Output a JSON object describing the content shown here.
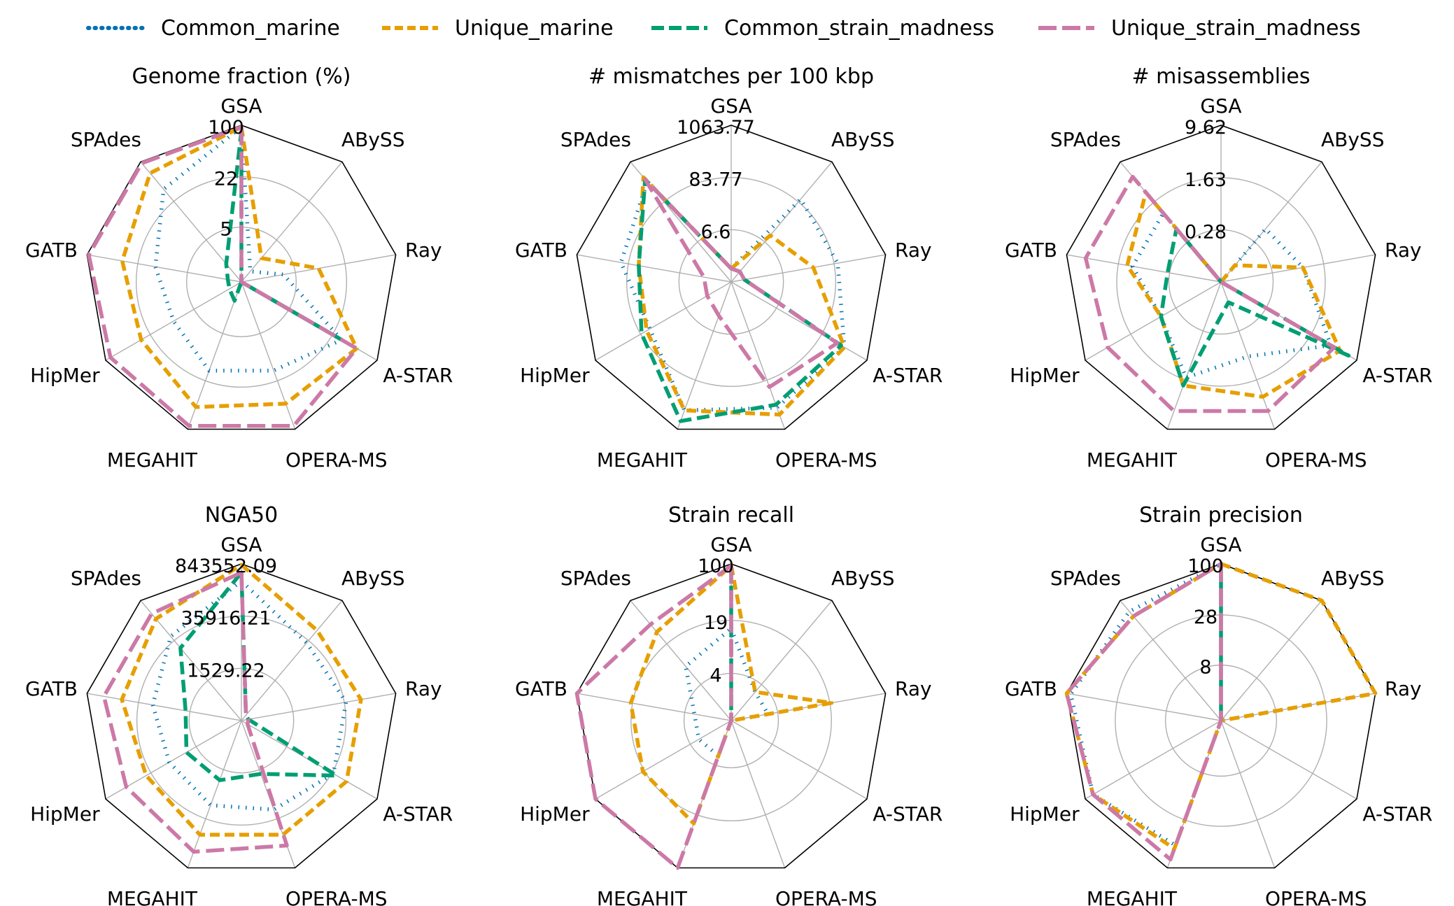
{
  "axes_order": [
    "GSA",
    "ABySS",
    "Ray",
    "A-STAR",
    "OPERA-MS",
    "MEGAHIT",
    "HipMer",
    "GATB",
    "SPAdes"
  ],
  "legend": [
    {
      "name": "Common_marine",
      "color": "#0072b2",
      "style": "dotted"
    },
    {
      "name": "Unique_marine",
      "color": "#e69f00",
      "style": "dashed"
    },
    {
      "name": "Common_strain_madness",
      "color": "#009e73",
      "style": "dashed"
    },
    {
      "name": "Unique_strain_madness",
      "color": "#cc79a7",
      "style": "long-dashed"
    }
  ],
  "chart_data": [
    {
      "type": "radar",
      "title": "Genome fraction (%)",
      "scale": "log",
      "categories": [
        "GSA",
        "ABySS",
        "Ray",
        "A-STAR",
        "OPERA-MS",
        "MEGAHIT",
        "HipMer",
        "GATB",
        "SPAdes"
      ],
      "ring_labels": [
        "5",
        "22",
        "100"
      ],
      "ring_values": [
        5,
        22,
        100
      ],
      "rlim": [
        1,
        100
      ],
      "series": [
        {
          "name": "Common_marine",
          "values": [
            95,
            1.5,
            3.5,
            30,
            16,
            16,
            10,
            13,
            35
          ]
        },
        {
          "name": "Unique_marine",
          "values": [
            95,
            2.5,
            10,
            50,
            45,
            50,
            30,
            35,
            65
          ]
        },
        {
          "name": "Common_strain_madness",
          "values": [
            85,
            1,
            1,
            30,
            1,
            1.8,
            1.5,
            1.5,
            2
          ]
        },
        {
          "name": "Unique_strain_madness",
          "values": [
            95,
            1,
            1,
            50,
            90,
            90,
            85,
            95,
            95
          ]
        }
      ]
    },
    {
      "type": "radar",
      "title": "# mismatches per 100 kbp",
      "scale": "log",
      "categories": [
        "GSA",
        "ABySS",
        "Ray",
        "A-STAR",
        "OPERA-MS",
        "MEGAHIT",
        "HipMer",
        "GATB",
        "SPAdes"
      ],
      "ring_labels": [
        "6.6",
        "83.77",
        "1063.77"
      ],
      "ring_values": [
        6.6,
        83.77,
        1063.77
      ],
      "rlim": [
        0.52,
        1063.77
      ],
      "series": [
        {
          "name": "Common_marine",
          "values": [
            1,
            100,
            100,
            300,
            350,
            400,
            50,
            120,
            300
          ]
        },
        {
          "name": "Unique_marine",
          "values": [
            1,
            10,
            30,
            300,
            500,
            400,
            60,
            50,
            400
          ]
        },
        {
          "name": "Common_strain_madness",
          "values": [
            1,
            1,
            1,
            250,
            300,
            700,
            80,
            50,
            350
          ]
        },
        {
          "name": "Unique_strain_madness",
          "values": [
            1,
            1,
            1,
            200,
            120,
            3,
            2,
            2,
            350
          ]
        }
      ]
    },
    {
      "type": "radar",
      "title": "# misassemblies",
      "scale": "log",
      "categories": [
        "GSA",
        "ABySS",
        "Ray",
        "A-STAR",
        "OPERA-MS",
        "MEGAHIT",
        "HipMer",
        "GATB",
        "SPAdes"
      ],
      "ring_labels": [
        "0.28",
        "1.63",
        "9.62"
      ],
      "ring_values": [
        0.28,
        1.63,
        9.62
      ],
      "rlim": [
        0.048,
        9.62
      ],
      "series": [
        {
          "name": "Common_marine",
          "values": [
            0.048,
            0.5,
            0.8,
            3.5,
            0.7,
            1.5,
            0.5,
            1.0,
            1.0
          ]
        },
        {
          "name": "Unique_marine",
          "values": [
            0.048,
            0.1,
            0.8,
            5,
            3,
            2,
            0.5,
            1.2,
            2.5
          ]
        },
        {
          "name": "Common_strain_madness",
          "values": [
            0.048,
            0.048,
            0.048,
            7,
            0.1,
            2,
            0.5,
            0.3,
            0.5
          ]
        },
        {
          "name": "Unique_strain_madness",
          "values": [
            0.048,
            0.048,
            0.048,
            4,
            5,
            5,
            4,
            5,
            5
          ]
        }
      ]
    },
    {
      "type": "radar",
      "title": "NGA50",
      "scale": "log",
      "categories": [
        "GSA",
        "ABySS",
        "Ray",
        "A-STAR",
        "OPERA-MS",
        "MEGAHIT",
        "HipMer",
        "GATB",
        "SPAdes"
      ],
      "ring_labels": [
        "1529.22",
        "35916.21",
        "843552.09"
      ],
      "ring_values": [
        1529.22,
        35916.21,
        843552.09
      ],
      "rlim": [
        65,
        843552.09
      ],
      "series": [
        {
          "name": "Common_marine",
          "values": [
            300000,
            30000,
            40000,
            40000,
            20000,
            15000,
            10000,
            15000,
            50000
          ]
        },
        {
          "name": "Unique_marine",
          "values": [
            800000,
            80000,
            100000,
            100000,
            100000,
            100000,
            50000,
            100000,
            200000
          ]
        },
        {
          "name": "Common_strain_madness",
          "values": [
            500000,
            100,
            100,
            50000,
            2000,
            3000,
            3000,
            2000,
            20000
          ]
        },
        {
          "name": "Unique_strain_madness",
          "values": [
            500000,
            100,
            100,
            100,
            200000,
            300000,
            200000,
            300000,
            300000
          ]
        }
      ]
    },
    {
      "type": "radar",
      "title": "Strain recall",
      "scale": "log",
      "categories": [
        "GSA",
        "ABySS",
        "Ray",
        "A-STAR",
        "OPERA-MS",
        "MEGAHIT",
        "HipMer",
        "GATB",
        "SPAdes"
      ],
      "ring_labels": [
        "4",
        "19",
        "100"
      ],
      "ring_values": [
        4,
        19,
        100
      ],
      "rlim": [
        1,
        100
      ],
      "series": [
        {
          "name": "Common_marine",
          "values": [
            15,
            3,
            3,
            1,
            1,
            3,
            3,
            3,
            8
          ]
        },
        {
          "name": "Unique_marine",
          "values": [
            95,
            3,
            20,
            1,
            1,
            25,
            20,
            20,
            30
          ]
        },
        {
          "name": "Common_strain_madness",
          "values": [
            90,
            1,
            1,
            1,
            1,
            1,
            1,
            1,
            1
          ]
        },
        {
          "name": "Unique_strain_madness",
          "values": [
            95,
            1,
            1,
            1,
            1,
            100,
            100,
            100,
            40
          ]
        }
      ]
    },
    {
      "type": "radar",
      "title": "Strain precision",
      "scale": "log",
      "categories": [
        "GSA",
        "ABySS",
        "Ray",
        "A-STAR",
        "OPERA-MS",
        "MEGAHIT",
        "HipMer",
        "GATB",
        "SPAdes"
      ],
      "ring_labels": [
        "8",
        "28",
        "100"
      ],
      "ring_values": [
        8,
        28,
        100
      ],
      "rlim": [
        2,
        100
      ],
      "series": [
        {
          "name": "Common_marine",
          "values": [
            100,
            100,
            100,
            2,
            2,
            55,
            80,
            90,
            70
          ]
        },
        {
          "name": "Unique_marine",
          "values": [
            100,
            100,
            100,
            2,
            2,
            60,
            80,
            100,
            60
          ]
        },
        {
          "name": "Common_strain_madness",
          "values": [
            100,
            2,
            2,
            2,
            2,
            2,
            2,
            2,
            2
          ]
        },
        {
          "name": "Unique_strain_madness",
          "values": [
            100,
            2,
            2,
            2,
            2,
            80,
            80,
            100,
            60
          ]
        }
      ]
    }
  ]
}
